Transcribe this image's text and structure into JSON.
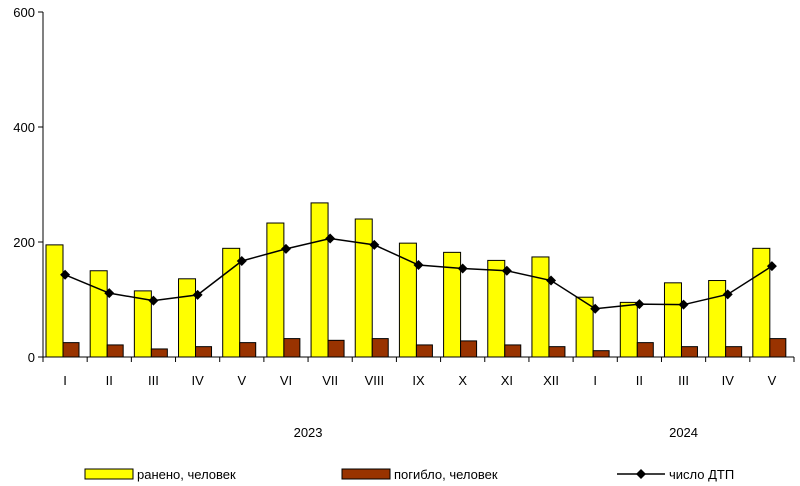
{
  "chart_data": {
    "type": "bar",
    "categories": [
      "I",
      "II",
      "III",
      "IV",
      "V",
      "VI",
      "VII",
      "VIII",
      "IX",
      "X",
      "XI",
      "XII",
      "I",
      "II",
      "III",
      "IV",
      "V"
    ],
    "year_labels": [
      {
        "label": "2023",
        "start_index": 0,
        "end_index": 11
      },
      {
        "label": "2024",
        "start_index": 12,
        "end_index": 16
      }
    ],
    "ylim": [
      0,
      600
    ],
    "yticks": [
      0,
      200,
      400,
      600
    ],
    "series": [
      {
        "name": "ранено, человек",
        "kind": "bar",
        "color": "#ffff00",
        "values": [
          195,
          150,
          115,
          136,
          189,
          233,
          268,
          240,
          198,
          182,
          168,
          174,
          104,
          95,
          129,
          133,
          189
        ]
      },
      {
        "name": "погибло, человек",
        "kind": "bar",
        "color": "#993300",
        "values": [
          25,
          21,
          14,
          18,
          25,
          32,
          29,
          32,
          21,
          28,
          21,
          18,
          11,
          25,
          18,
          18,
          32
        ]
      },
      {
        "name": "число ДТП",
        "kind": "line",
        "color": "#000000",
        "marker": "diamond",
        "values": [
          143,
          111,
          98,
          108,
          167,
          188,
          206,
          195,
          160,
          154,
          150,
          133,
          84,
          92,
          91,
          109,
          158
        ]
      }
    ],
    "grid": false,
    "legend_position": "bottom"
  }
}
